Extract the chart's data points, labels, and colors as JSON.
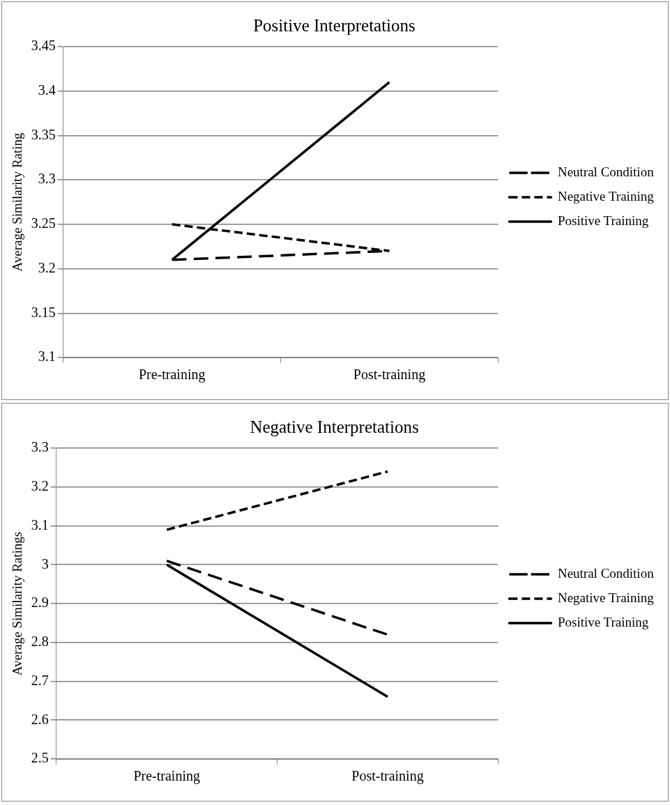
{
  "chart_data": [
    {
      "type": "line",
      "title": "Positive Interpretations",
      "ylabel": "Average Similarity Rating",
      "categories": [
        "Pre-training",
        "Post-training"
      ],
      "series": [
        {
          "name": "Neutral Condition",
          "color": "#000000",
          "line_style": "dashed",
          "values": [
            3.21,
            3.22
          ]
        },
        {
          "name": "Negative Training",
          "color": "#000000",
          "line_style": "dashed",
          "values": [
            3.25,
            3.22
          ]
        },
        {
          "name": "Positive Training",
          "color": "#000000",
          "line_style": "solid",
          "values": [
            3.21,
            3.41
          ]
        }
      ],
      "ylim": [
        3.1,
        3.45
      ],
      "yticks": [
        3.1,
        3.15,
        3.2,
        3.25,
        3.3,
        3.35,
        3.4,
        3.45
      ],
      "grid": "y",
      "legend": "right",
      "marker": "none"
    },
    {
      "type": "line",
      "title": "Negative Interpretations",
      "ylabel": "Average Similarity Ratings",
      "categories": [
        "Pre-training",
        "Post-training"
      ],
      "series": [
        {
          "name": "Neutral Condition",
          "color": "#000000",
          "line_style": "dashed",
          "values": [
            3.01,
            2.82
          ]
        },
        {
          "name": "Negative Training",
          "color": "#000000",
          "line_style": "dashed",
          "values": [
            3.09,
            3.24
          ]
        },
        {
          "name": "Positive Training",
          "color": "#000000",
          "line_style": "solid",
          "values": [
            3.0,
            2.66
          ]
        }
      ],
      "ylim": [
        2.5,
        3.3
      ],
      "yticks": [
        2.5,
        2.6,
        2.7,
        2.8,
        2.9,
        3,
        3.1,
        3.2,
        3.3
      ],
      "grid": "y",
      "legend": "right",
      "marker": "none"
    }
  ]
}
